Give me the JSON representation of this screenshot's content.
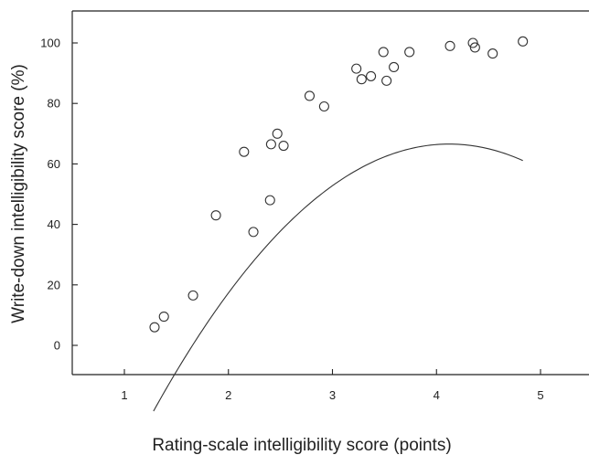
{
  "chart_data": {
    "type": "scatter",
    "title": "",
    "xlabel": "Rating-scale intelligibility score (points)",
    "ylabel": "Write-down intelligibility score (%)",
    "xlim": [
      0.5,
      5.5
    ],
    "ylim": [
      -10,
      110
    ],
    "x_ticks": [
      "1",
      "2",
      "3",
      "4",
      "5"
    ],
    "y_ticks": [
      "0",
      "20",
      "40",
      "60",
      "80",
      "100"
    ],
    "grid": false,
    "legend": "none",
    "series": [
      {
        "kind": "points",
        "marker": "open-circle",
        "color": "#333333",
        "points": [
          {
            "x": 1.29,
            "y": 6.0
          },
          {
            "x": 1.38,
            "y": 9.5
          },
          {
            "x": 1.66,
            "y": 16.5
          },
          {
            "x": 1.88,
            "y": 43.0
          },
          {
            "x": 2.15,
            "y": 64.0
          },
          {
            "x": 2.24,
            "y": 37.5
          },
          {
            "x": 2.4,
            "y": 48.0
          },
          {
            "x": 2.41,
            "y": 66.5
          },
          {
            "x": 2.47,
            "y": 70.0
          },
          {
            "x": 2.53,
            "y": 66.0
          },
          {
            "x": 2.78,
            "y": 82.5
          },
          {
            "x": 2.92,
            "y": 79.0
          },
          {
            "x": 3.23,
            "y": 91.5
          },
          {
            "x": 3.28,
            "y": 88.0
          },
          {
            "x": 3.37,
            "y": 89.0
          },
          {
            "x": 3.49,
            "y": 97.0
          },
          {
            "x": 3.52,
            "y": 87.5
          },
          {
            "x": 3.59,
            "y": 92.0
          },
          {
            "x": 3.74,
            "y": 97.0
          },
          {
            "x": 4.13,
            "y": 99.0
          },
          {
            "x": 4.35,
            "y": 100.0
          },
          {
            "x": 4.37,
            "y": 98.5
          },
          {
            "x": 4.54,
            "y": 96.5
          },
          {
            "x": 4.83,
            "y": 100.5
          }
        ]
      },
      {
        "kind": "fit-curve",
        "color": "#333333",
        "x_range": [
          1.28,
          4.83
        ],
        "coefficients": {
          "a": -119.2,
          "b": 90.12,
          "c": -10.93
        }
      }
    ]
  }
}
